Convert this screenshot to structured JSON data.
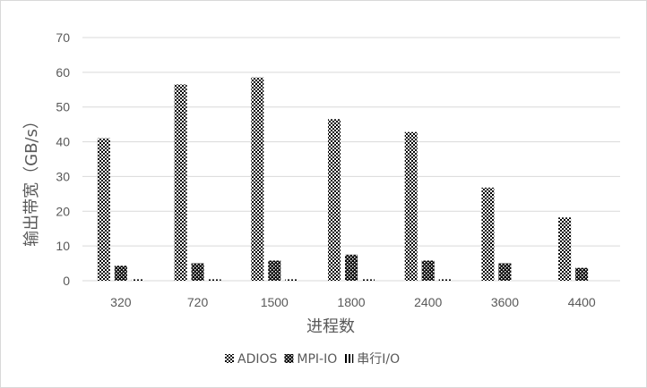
{
  "chart_data": {
    "type": "bar",
    "title": "",
    "xlabel": "进程数",
    "ylabel": "输出带宽（GB/s）",
    "ylim": [
      0,
      70
    ],
    "yticks": [
      0,
      10,
      20,
      30,
      40,
      50,
      60,
      70
    ],
    "grid": true,
    "legend_position": "bottom",
    "categories": [
      "320",
      "720",
      "1500",
      "1800",
      "2400",
      "3600",
      "4400"
    ],
    "series": [
      {
        "name": "ADIOS",
        "values": [
          41,
          56.5,
          58.5,
          46.5,
          42.8,
          26.8,
          18.2
        ]
      },
      {
        "name": "MPI-IO",
        "values": [
          4.3,
          5,
          5.8,
          7.5,
          5.8,
          5,
          3.7
        ]
      },
      {
        "name": "串行I/O",
        "values": [
          0.4,
          0.4,
          0.4,
          0.4,
          0.4,
          0,
          0
        ]
      }
    ]
  }
}
